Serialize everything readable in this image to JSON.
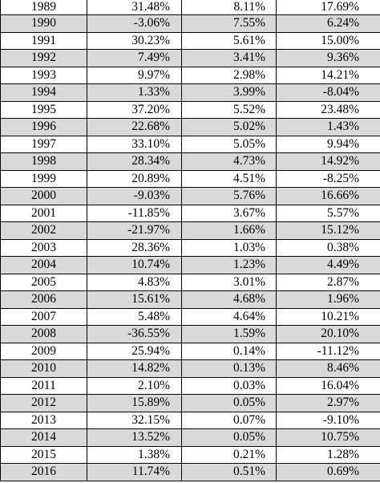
{
  "table": {
    "rows": [
      {
        "year": "1989",
        "a": "31.48%",
        "b": "8.11%",
        "c": "17.69%",
        "shaded": false
      },
      {
        "year": "1990",
        "a": "-3.06%",
        "b": "7.55%",
        "c": "6.24%",
        "shaded": true
      },
      {
        "year": "1991",
        "a": "30.23%",
        "b": "5.61%",
        "c": "15.00%",
        "shaded": false
      },
      {
        "year": "1992",
        "a": "7.49%",
        "b": "3.41%",
        "c": "9.36%",
        "shaded": true
      },
      {
        "year": "1993",
        "a": "9.97%",
        "b": "2.98%",
        "c": "14.21%",
        "shaded": false
      },
      {
        "year": "1994",
        "a": "1.33%",
        "b": "3.99%",
        "c": "-8.04%",
        "shaded": true
      },
      {
        "year": "1995",
        "a": "37.20%",
        "b": "5.52%",
        "c": "23.48%",
        "shaded": false
      },
      {
        "year": "1996",
        "a": "22.68%",
        "b": "5.02%",
        "c": "1.43%",
        "shaded": true
      },
      {
        "year": "1997",
        "a": "33.10%",
        "b": "5.05%",
        "c": "9.94%",
        "shaded": false
      },
      {
        "year": "1998",
        "a": "28.34%",
        "b": "4.73%",
        "c": "14.92%",
        "shaded": true
      },
      {
        "year": "1999",
        "a": "20.89%",
        "b": "4.51%",
        "c": "-8.25%",
        "shaded": false
      },
      {
        "year": "2000",
        "a": "-9.03%",
        "b": "5.76%",
        "c": "16.66%",
        "shaded": true
      },
      {
        "year": "2001",
        "a": "-11.85%",
        "b": "3.67%",
        "c": "5.57%",
        "shaded": false
      },
      {
        "year": "2002",
        "a": "-21.97%",
        "b": "1.66%",
        "c": "15.12%",
        "shaded": true
      },
      {
        "year": "2003",
        "a": "28.36%",
        "b": "1.03%",
        "c": "0.38%",
        "shaded": false
      },
      {
        "year": "2004",
        "a": "10.74%",
        "b": "1.23%",
        "c": "4.49%",
        "shaded": true
      },
      {
        "year": "2005",
        "a": "4.83%",
        "b": "3.01%",
        "c": "2.87%",
        "shaded": false
      },
      {
        "year": "2006",
        "a": "15.61%",
        "b": "4.68%",
        "c": "1.96%",
        "shaded": true
      },
      {
        "year": "2007",
        "a": "5.48%",
        "b": "4.64%",
        "c": "10.21%",
        "shaded": false
      },
      {
        "year": "2008",
        "a": "-36.55%",
        "b": "1.59%",
        "c": "20.10%",
        "shaded": true
      },
      {
        "year": "2009",
        "a": "25.94%",
        "b": "0.14%",
        "c": "-11.12%",
        "shaded": false
      },
      {
        "year": "2010",
        "a": "14.82%",
        "b": "0.13%",
        "c": "8.46%",
        "shaded": true
      },
      {
        "year": "2011",
        "a": "2.10%",
        "b": "0.03%",
        "c": "16.04%",
        "shaded": false
      },
      {
        "year": "2012",
        "a": "15.89%",
        "b": "0.05%",
        "c": "2.97%",
        "shaded": true
      },
      {
        "year": "2013",
        "a": "32.15%",
        "b": "0.07%",
        "c": "-9.10%",
        "shaded": false
      },
      {
        "year": "2014",
        "a": "13.52%",
        "b": "0.05%",
        "c": "10.75%",
        "shaded": true
      },
      {
        "year": "2015",
        "a": "1.38%",
        "b": "0.21%",
        "c": "1.28%",
        "shaded": false
      },
      {
        "year": "2016",
        "a": "11.74%",
        "b": "0.51%",
        "c": "0.69%",
        "shaded": true
      }
    ]
  },
  "colors": {
    "shade": "#d9d9d9",
    "rule": "#000000",
    "text": "#000000"
  }
}
